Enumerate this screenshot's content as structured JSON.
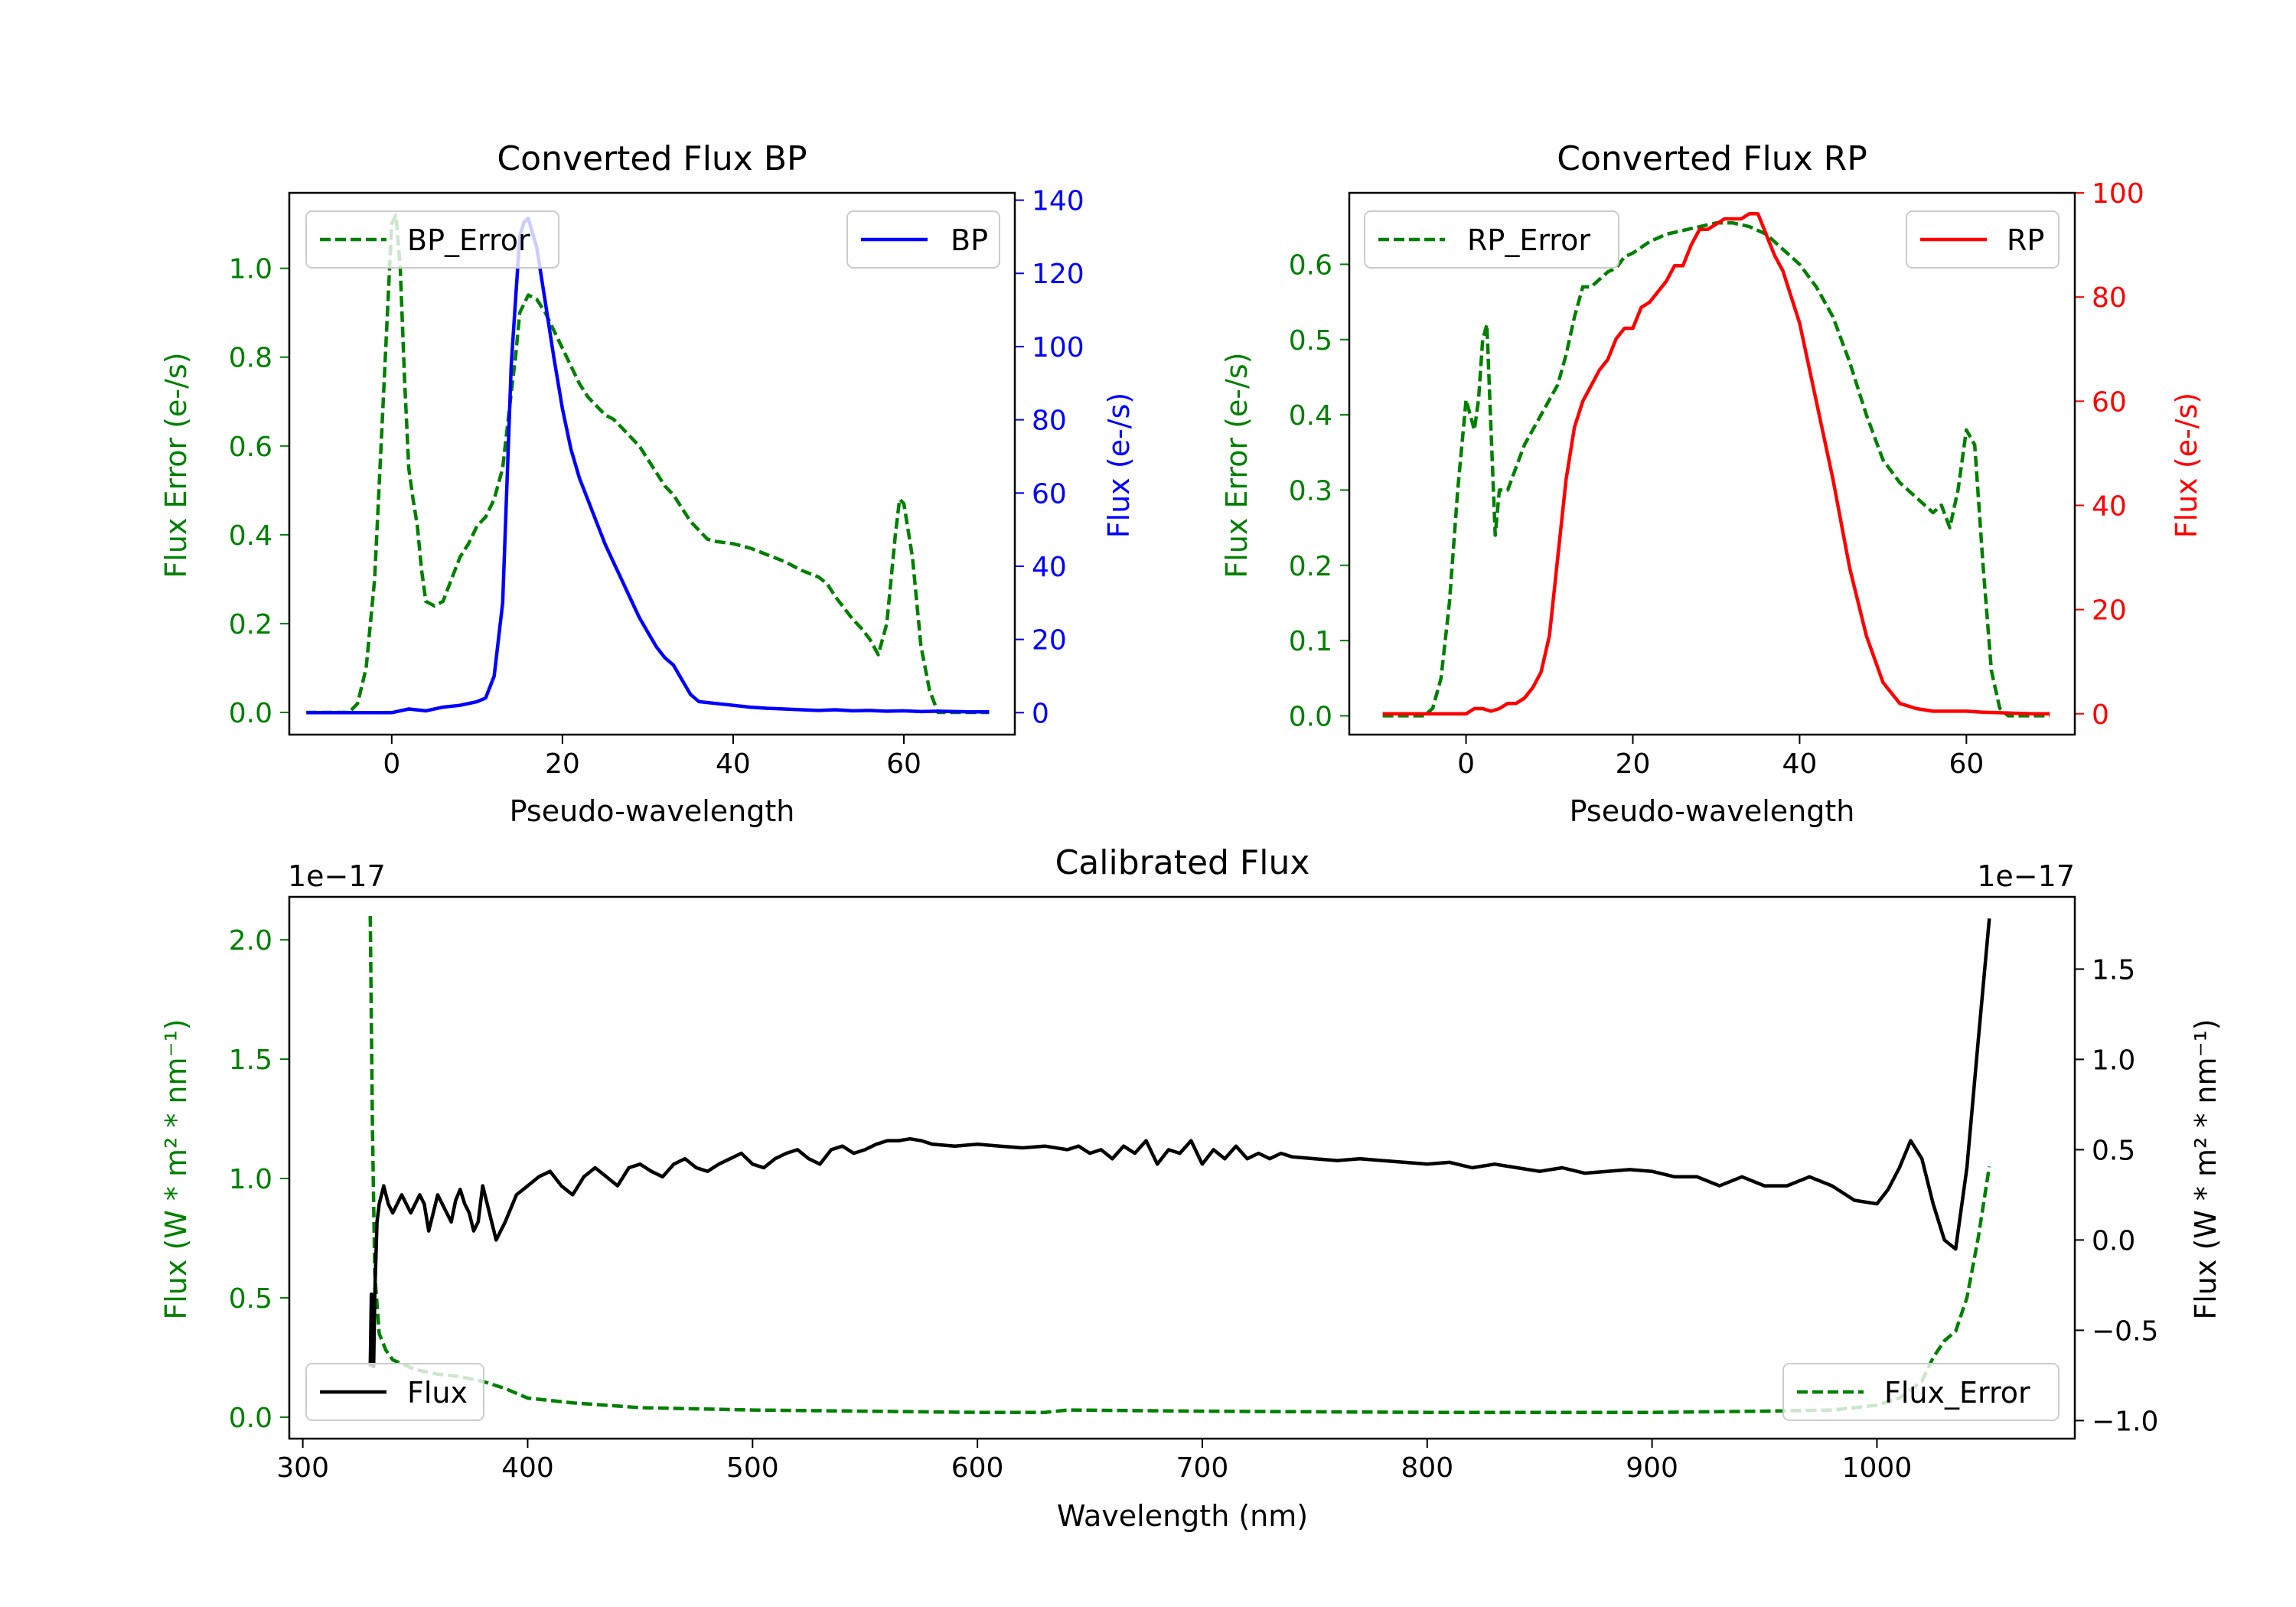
{
  "colors": {
    "error": "#008000",
    "bp": "#0000ff",
    "rp": "#ff0000",
    "flux": "#000000",
    "axis": "#000000",
    "background": "#ffffff"
  },
  "chart_data": [
    {
      "id": "bp",
      "type": "line",
      "title": "Converted Flux BP",
      "xlabel": "Pseudo-wavelength",
      "xlim": [
        -12,
        73
      ],
      "xticks": [
        0,
        20,
        40,
        60
      ],
      "left_axis": {
        "label": "Flux Error (e-/s)",
        "color": "error",
        "ylim": [
          -0.05,
          1.17
        ],
        "ticks": [
          0.0,
          0.2,
          0.4,
          0.6,
          0.8,
          1.0
        ],
        "tick_labels": [
          "0.0",
          "0.2",
          "0.4",
          "0.6",
          "0.8",
          "1.0"
        ]
      },
      "right_axis": {
        "label": "Flux (e-/s)",
        "color": "bp",
        "ylim": [
          -6,
          142
        ],
        "ticks": [
          0,
          20,
          40,
          60,
          80,
          100,
          120,
          140
        ],
        "tick_labels": [
          "0",
          "20",
          "40",
          "60",
          "80",
          "100",
          "120",
          "140"
        ]
      },
      "legend_left": {
        "label": "BP_Error",
        "position": "upper left"
      },
      "legend_right": {
        "label": "BP",
        "position": "upper right"
      },
      "series": [
        {
          "name": "BP_Error",
          "axis": "left",
          "style": "dashed",
          "color": "error",
          "x": [
            -10,
            -5,
            -4,
            -3,
            -2,
            -1,
            0,
            0.5,
            1,
            1.5,
            2,
            2.5,
            3,
            3.5,
            4,
            4.5,
            5,
            6,
            7,
            8,
            9,
            10,
            11,
            12,
            13,
            14,
            14.5,
            15,
            16,
            17,
            18,
            19,
            20,
            21,
            22,
            23,
            24,
            25,
            26,
            27,
            28,
            29,
            30,
            31,
            32,
            33,
            34,
            35,
            36,
            37,
            38,
            40,
            42,
            44,
            46,
            48,
            50,
            51,
            52,
            53,
            54,
            55,
            56,
            57,
            58,
            59,
            59.5,
            60,
            61,
            62,
            63,
            64,
            65,
            66,
            68,
            70
          ],
          "y": [
            0.0,
            0.0,
            0.02,
            0.1,
            0.3,
            0.7,
            1.1,
            1.12,
            1.0,
            0.75,
            0.55,
            0.48,
            0.42,
            0.32,
            0.25,
            0.245,
            0.24,
            0.25,
            0.3,
            0.35,
            0.38,
            0.42,
            0.44,
            0.48,
            0.55,
            0.72,
            0.8,
            0.9,
            0.94,
            0.93,
            0.9,
            0.86,
            0.82,
            0.78,
            0.74,
            0.71,
            0.69,
            0.67,
            0.66,
            0.64,
            0.62,
            0.6,
            0.57,
            0.54,
            0.51,
            0.49,
            0.46,
            0.43,
            0.41,
            0.39,
            0.385,
            0.38,
            0.37,
            0.355,
            0.34,
            0.32,
            0.305,
            0.29,
            0.26,
            0.235,
            0.21,
            0.19,
            0.165,
            0.13,
            0.2,
            0.4,
            0.48,
            0.47,
            0.35,
            0.15,
            0.05,
            0.0,
            0.0,
            0.0,
            0.0,
            0.0
          ]
        },
        {
          "name": "BP",
          "axis": "right",
          "style": "solid",
          "color": "bp",
          "x": [
            -10,
            -5,
            0,
            2,
            4,
            6,
            8,
            10,
            11,
            12,
            13,
            14,
            15,
            15.5,
            16,
            17,
            18,
            19,
            20,
            21,
            22,
            23,
            24,
            25,
            26,
            27,
            28,
            29,
            30,
            31,
            32,
            33,
            34,
            35,
            36,
            38,
            40,
            42,
            44,
            46,
            48,
            50,
            52,
            54,
            56,
            58,
            60,
            62,
            64,
            66,
            68,
            70
          ],
          "y": [
            0,
            0,
            0,
            1,
            0.5,
            1.5,
            2,
            3,
            4,
            10,
            30,
            95,
            130,
            134,
            135,
            127,
            112,
            97,
            83,
            72,
            64,
            58,
            52,
            46,
            41,
            36,
            31,
            26,
            22,
            18,
            15,
            13,
            9,
            5,
            3,
            2.5,
            2,
            1.5,
            1.2,
            1,
            0.8,
            0.6,
            0.8,
            0.5,
            0.6,
            0.4,
            0.5,
            0.3,
            0.4,
            0.3,
            0.2,
            0.2
          ]
        }
      ]
    },
    {
      "id": "rp",
      "type": "line",
      "title": "Converted Flux RP",
      "xlabel": "Pseudo-wavelength",
      "xlim": [
        -14,
        73
      ],
      "xticks": [
        0,
        20,
        40,
        60
      ],
      "left_axis": {
        "label": "Flux Error (e-/s)",
        "color": "error",
        "ylim": [
          -0.025,
          0.695
        ],
        "ticks": [
          0.0,
          0.1,
          0.2,
          0.3,
          0.4,
          0.5,
          0.6
        ],
        "tick_labels": [
          "0.0",
          "0.1",
          "0.2",
          "0.3",
          "0.4",
          "0.5",
          "0.6"
        ]
      },
      "right_axis": {
        "label": "Flux (e-/s)",
        "color": "rp",
        "ylim": [
          -4,
          100
        ],
        "ticks": [
          0,
          20,
          40,
          60,
          80,
          100
        ],
        "tick_labels": [
          "0",
          "20",
          "40",
          "60",
          "80",
          "100"
        ]
      },
      "legend_left": {
        "label": "RP_Error",
        "position": "upper left"
      },
      "legend_right": {
        "label": "RP",
        "position": "upper right"
      },
      "series": [
        {
          "name": "RP_Error",
          "axis": "right_hidden",
          "axisName": "left",
          "style": "dashed",
          "color": "error",
          "x": [
            -10,
            -5,
            -4,
            -3,
            -2,
            -1,
            0,
            0.5,
            1,
            1.5,
            2,
            2.5,
            3,
            3.5,
            4,
            5,
            6,
            7,
            8,
            9,
            10,
            11,
            12,
            13,
            14,
            15,
            16,
            17,
            18,
            19,
            20,
            22,
            24,
            26,
            28,
            30,
            32,
            34,
            36,
            38,
            40,
            42,
            44,
            46,
            48,
            50,
            52,
            54,
            55,
            56,
            57,
            58,
            59,
            60,
            61,
            62,
            63,
            64,
            65,
            66,
            68,
            70
          ],
          "y": [
            0.0,
            0.0,
            0.01,
            0.05,
            0.15,
            0.3,
            0.42,
            0.4,
            0.38,
            0.42,
            0.5,
            0.52,
            0.38,
            0.24,
            0.3,
            0.3,
            0.33,
            0.36,
            0.38,
            0.4,
            0.42,
            0.44,
            0.48,
            0.53,
            0.57,
            0.57,
            0.58,
            0.59,
            0.595,
            0.61,
            0.615,
            0.63,
            0.64,
            0.645,
            0.65,
            0.655,
            0.655,
            0.65,
            0.64,
            0.62,
            0.6,
            0.57,
            0.53,
            0.47,
            0.4,
            0.34,
            0.31,
            0.29,
            0.28,
            0.27,
            0.28,
            0.25,
            0.3,
            0.38,
            0.36,
            0.2,
            0.06,
            0.01,
            0.0,
            0.0,
            0.0,
            0.0
          ]
        },
        {
          "name": "RP",
          "axis": "right",
          "style": "solid",
          "color": "rp",
          "x": [
            -10,
            -5,
            0,
            1,
            2,
            3,
            4,
            5,
            6,
            7,
            8,
            9,
            10,
            11,
            12,
            13,
            14,
            15,
            16,
            17,
            18,
            19,
            20,
            21,
            22,
            23,
            24,
            25,
            26,
            27,
            28,
            29,
            30,
            31,
            32,
            33,
            34,
            35,
            36,
            37,
            38,
            39,
            40,
            42,
            44,
            46,
            48,
            50,
            52,
            54,
            56,
            58,
            60,
            62,
            64,
            66,
            68,
            70
          ],
          "y": [
            0,
            0,
            0,
            1,
            1,
            0.5,
            1,
            2,
            2,
            3,
            5,
            8,
            15,
            30,
            45,
            55,
            60,
            63,
            66,
            68,
            72,
            74,
            74,
            78,
            79,
            81,
            83,
            86,
            86,
            90,
            93,
            93,
            94,
            95,
            95,
            95,
            96,
            96,
            92,
            88,
            85,
            80,
            75,
            60,
            45,
            28,
            15,
            6,
            2,
            1,
            0.5,
            0.5,
            0.5,
            0.3,
            0.2,
            0.1,
            0,
            0
          ]
        }
      ]
    },
    {
      "id": "cal",
      "type": "line",
      "title": "Calibrated Flux",
      "xlabel": "Wavelength (nm)",
      "xlim": [
        294,
        1088
      ],
      "xticks": [
        300,
        400,
        500,
        600,
        700,
        800,
        900,
        1000
      ],
      "left_axis": {
        "label": "Flux (W * m² * nm⁻¹)",
        "color": "error",
        "ylim": [
          -0.09,
          2.18
        ],
        "offset_text": "1e−17",
        "ticks": [
          0.0,
          0.5,
          1.0,
          1.5,
          2.0
        ],
        "tick_labels": [
          "0.0",
          "0.5",
          "1.0",
          "1.5",
          "2.0"
        ]
      },
      "right_axis": {
        "label": "Flux (W * m² * nm⁻¹)",
        "color": "flux",
        "ylim": [
          -1.1,
          1.9
        ],
        "offset_text": "1e−17",
        "ticks": [
          -1.0,
          -0.5,
          0.0,
          0.5,
          1.0,
          1.5
        ],
        "tick_labels": [
          "−1.0",
          "−0.5",
          "0.0",
          "0.5",
          "1.0",
          "1.5"
        ]
      },
      "legend_left": {
        "label": "Flux",
        "position": "lower left"
      },
      "legend_right": {
        "label": "Flux_Error",
        "position": "lower right"
      },
      "series": [
        {
          "name": "Flux_Error",
          "axis": "left",
          "style": "dashed",
          "color": "error",
          "x": [
            330,
            331,
            332,
            334,
            337,
            340,
            345,
            350,
            360,
            370,
            380,
            390,
            400,
            420,
            450,
            500,
            550,
            600,
            630,
            640,
            700,
            800,
            900,
            950,
            980,
            1000,
            1010,
            1020,
            1025,
            1030,
            1035,
            1040,
            1045,
            1050
          ],
          "y": [
            2.1,
            1.2,
            0.6,
            0.35,
            0.28,
            0.24,
            0.22,
            0.2,
            0.18,
            0.17,
            0.15,
            0.12,
            0.08,
            0.06,
            0.04,
            0.03,
            0.025,
            0.02,
            0.02,
            0.03,
            0.025,
            0.02,
            0.02,
            0.025,
            0.03,
            0.05,
            0.08,
            0.15,
            0.25,
            0.32,
            0.36,
            0.5,
            0.75,
            1.05
          ]
        },
        {
          "name": "Flux",
          "axis": "right",
          "style": "solid",
          "color": "flux",
          "x": [
            330,
            330.5,
            331,
            331.5,
            332,
            333,
            334,
            335,
            336,
            337,
            338,
            340,
            342,
            344,
            346,
            348,
            350,
            352,
            354,
            356,
            358,
            360,
            362,
            364,
            366,
            368,
            370,
            372,
            374,
            376,
            378,
            380,
            382,
            384,
            386,
            388,
            390,
            395,
            400,
            405,
            410,
            415,
            420,
            425,
            430,
            435,
            440,
            445,
            450,
            455,
            460,
            465,
            470,
            475,
            480,
            485,
            490,
            495,
            500,
            505,
            510,
            515,
            520,
            525,
            530,
            535,
            540,
            545,
            550,
            555,
            560,
            565,
            570,
            575,
            580,
            590,
            600,
            610,
            620,
            630,
            640,
            645,
            650,
            655,
            660,
            665,
            670,
            675,
            680,
            685,
            690,
            695,
            700,
            705,
            710,
            715,
            720,
            725,
            730,
            735,
            740,
            750,
            760,
            770,
            780,
            790,
            800,
            810,
            820,
            830,
            840,
            850,
            860,
            870,
            880,
            890,
            900,
            910,
            920,
            930,
            940,
            950,
            960,
            970,
            980,
            990,
            1000,
            1005,
            1010,
            1015,
            1020,
            1025,
            1030,
            1035,
            1040,
            1045,
            1050
          ],
          "y": [
            -0.7,
            -0.3,
            -0.5,
            -0.7,
            -0.3,
            0.1,
            0.2,
            0.25,
            0.3,
            0.25,
            0.2,
            0.15,
            0.2,
            0.25,
            0.2,
            0.15,
            0.2,
            0.25,
            0.2,
            0.05,
            0.15,
            0.25,
            0.2,
            0.15,
            0.1,
            0.22,
            0.28,
            0.2,
            0.15,
            0.05,
            0.1,
            0.3,
            0.2,
            0.1,
            0.0,
            0.05,
            0.1,
            0.25,
            0.3,
            0.35,
            0.38,
            0.3,
            0.25,
            0.35,
            0.4,
            0.35,
            0.3,
            0.4,
            0.42,
            0.38,
            0.35,
            0.42,
            0.45,
            0.4,
            0.38,
            0.42,
            0.45,
            0.48,
            0.42,
            0.4,
            0.45,
            0.48,
            0.5,
            0.45,
            0.42,
            0.5,
            0.52,
            0.48,
            0.5,
            0.53,
            0.55,
            0.55,
            0.56,
            0.55,
            0.53,
            0.52,
            0.53,
            0.52,
            0.51,
            0.52,
            0.5,
            0.52,
            0.48,
            0.5,
            0.45,
            0.52,
            0.48,
            0.55,
            0.42,
            0.5,
            0.48,
            0.55,
            0.42,
            0.5,
            0.45,
            0.52,
            0.45,
            0.48,
            0.45,
            0.48,
            0.46,
            0.45,
            0.44,
            0.45,
            0.44,
            0.43,
            0.42,
            0.43,
            0.4,
            0.42,
            0.4,
            0.38,
            0.4,
            0.37,
            0.38,
            0.39,
            0.38,
            0.35,
            0.35,
            0.3,
            0.35,
            0.3,
            0.3,
            0.35,
            0.3,
            0.22,
            0.2,
            0.28,
            0.4,
            0.55,
            0.45,
            0.2,
            0.0,
            -0.05,
            0.4,
            1.1,
            1.78
          ]
        }
      ]
    }
  ]
}
